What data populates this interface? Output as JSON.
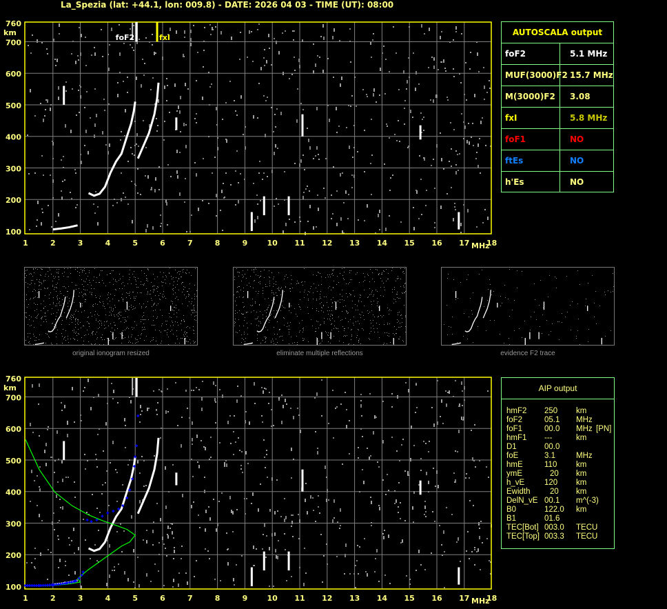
{
  "header": {
    "title": "La_Spezia (lat: +44.1, lon: 009.8) - DATE: 2026 04 03 - TIME (UT): 08:00"
  },
  "autoscala": {
    "title": "AUTOSCALA output",
    "rows": [
      {
        "label": "foF2",
        "value": "5.1 MHz",
        "label_color": "#ffffff",
        "value_color": "#ffffff"
      },
      {
        "label": "MUF(3000)F2",
        "value": "15.7 MHz",
        "label_color": "#ffff80",
        "value_color": "#ffff80"
      },
      {
        "label": "M(3000)F2",
        "value": "3.08",
        "label_color": "#ffff80",
        "value_color": "#ffff80"
      },
      {
        "label": "fxI",
        "value": "5.8 MHz",
        "label_color": "#ffff00",
        "value_color": "#c8c800"
      },
      {
        "label": "foF1",
        "value": "NO",
        "label_color": "#ff0000",
        "value_color": "#ff0000"
      },
      {
        "label": "ftEs",
        "value": "NO",
        "label_color": "#1080ff",
        "value_color": "#1080ff"
      },
      {
        "label": "h'Es",
        "value": "NO",
        "label_color": "#ffff80",
        "value_color": "#ffff80"
      }
    ]
  },
  "aip": {
    "title": "AIP output",
    "rows": [
      {
        "name": "hmF2",
        "value": "250",
        "unit": "km",
        "extra": ""
      },
      {
        "name": "foF2",
        "value": "05.1",
        "unit": "MHz",
        "extra": ""
      },
      {
        "name": "foF1",
        "value": "00.0",
        "unit": "MHz",
        "extra": "[PN]"
      },
      {
        "name": "hmF1",
        "value": "---",
        "unit": "km",
        "extra": ""
      },
      {
        "name": "D1",
        "value": "00.0",
        "unit": "",
        "extra": ""
      },
      {
        "name": "foE",
        "value": "3.1",
        "unit": "MHz",
        "extra": ""
      },
      {
        "name": "hmE",
        "value": "110",
        "unit": "km",
        "extra": ""
      },
      {
        "name": "ymE",
        "value": "20",
        "unit": "km",
        "extra": ""
      },
      {
        "name": "h_vE",
        "value": "120",
        "unit": "km",
        "extra": ""
      },
      {
        "name": "Ewidth",
        "value": "20",
        "unit": "km",
        "extra": ""
      },
      {
        "name": "DelN_vE",
        "value": "00.1",
        "unit": "m^(-3)",
        "extra": ""
      },
      {
        "name": "B0",
        "value": "122.0",
        "unit": "km",
        "extra": ""
      },
      {
        "name": "B1",
        "value": "01.6",
        "unit": "",
        "extra": ""
      },
      {
        "name": "TEC[Bot]",
        "value": "003.0",
        "unit": "TECU",
        "extra": ""
      },
      {
        "name": "TEC[Top]",
        "value": "003.3",
        "unit": "TECU",
        "extra": ""
      }
    ]
  },
  "thumbnails": [
    {
      "label": "original ionogram resized"
    },
    {
      "label": "eliminate multiple reflections"
    },
    {
      "label": "evidence F2 trace"
    }
  ],
  "colors": {
    "axis": "#ffff00",
    "grid": "#808080",
    "trace": "#ffffff",
    "profile": "#00ff00",
    "aip_points": "#0000ff",
    "table_border": "#80ff80"
  },
  "chart_data": [
    {
      "type": "scatter",
      "xlabel": "MHz",
      "ylabel": "km",
      "xlim": [
        1,
        18
      ],
      "ylim": [
        100,
        760
      ],
      "xticks": [
        "1",
        "2",
        "3",
        "4",
        "5",
        "6",
        "7",
        "8",
        "9",
        "10",
        "11",
        "12",
        "13",
        "14",
        "15",
        "16",
        "17",
        "18"
      ],
      "yticks": [
        "100",
        "200",
        "300",
        "400",
        "500",
        "600",
        "700",
        "760"
      ],
      "grid": true,
      "markers": [
        {
          "label": "foF2",
          "x": 5.05,
          "color": "#ffffff"
        },
        {
          "label": "fxI",
          "x": 5.8,
          "color": "#ffff00"
        }
      ],
      "traces": [
        {
          "name": "",
          "points": [
            [
              2.0,
              105
            ],
            [
              2.3,
              108
            ],
            [
              2.6,
              112
            ],
            [
              2.9,
              118
            ]
          ]
        },
        {
          "name": "",
          "points": [
            [
              3.3,
              220
            ],
            [
              3.5,
              212
            ],
            [
              3.7,
              218
            ],
            [
              3.9,
              240
            ],
            [
              4.1,
              285
            ],
            [
              4.3,
              320
            ],
            [
              4.5,
              345
            ],
            [
              4.7,
              400
            ],
            [
              4.85,
              440
            ],
            [
              4.95,
              480
            ],
            [
              5.0,
              510
            ]
          ]
        },
        {
          "name": "",
          "points": [
            [
              5.1,
              330
            ],
            [
              5.3,
              370
            ],
            [
              5.5,
              410
            ],
            [
              5.7,
              470
            ],
            [
              5.8,
              520
            ],
            [
              5.85,
              570
            ]
          ]
        },
        {
          "name": "",
          "points": [
            [
              2.4,
              500
            ],
            [
              2.4,
              560
            ]
          ]
        },
        {
          "name": "",
          "points": [
            [
              6.5,
              420
            ],
            [
              6.5,
              460
            ]
          ]
        },
        {
          "name": "",
          "points": [
            [
              11.1,
              400
            ],
            [
              11.1,
              470
            ]
          ]
        },
        {
          "name": "",
          "points": [
            [
              15.4,
              390
            ],
            [
              15.4,
              435
            ]
          ]
        },
        {
          "name": "",
          "points": [
            [
              16.8,
              105
            ],
            [
              16.8,
              160
            ]
          ]
        },
        {
          "name": "",
          "points": [
            [
              9.25,
              100
            ],
            [
              9.25,
              160
            ]
          ]
        },
        {
          "name": "",
          "points": [
            [
              9.7,
              150
            ],
            [
              9.7,
              210
            ]
          ]
        },
        {
          "name": "",
          "points": [
            [
              10.6,
              150
            ],
            [
              10.6,
              210
            ]
          ]
        }
      ]
    },
    {
      "type": "scatter",
      "xlabel": "MHz",
      "ylabel": "km",
      "xlim": [
        1,
        18
      ],
      "ylim": [
        100,
        760
      ],
      "xticks": [
        "1",
        "2",
        "3",
        "4",
        "5",
        "6",
        "7",
        "8",
        "9",
        "10",
        "11",
        "12",
        "13",
        "14",
        "15",
        "16",
        "17",
        "18"
      ],
      "yticks": [
        "100",
        "200",
        "300",
        "400",
        "500",
        "600",
        "700",
        "760"
      ],
      "grid": true,
      "profile": [
        [
          1.0,
          565
        ],
        [
          1.5,
          470
        ],
        [
          2.07,
          398
        ],
        [
          2.7,
          355
        ],
        [
          3.3,
          326
        ],
        [
          3.8,
          308
        ],
        [
          4.3,
          293
        ],
        [
          4.7,
          280
        ],
        [
          5.0,
          262
        ],
        [
          4.8,
          240
        ],
        [
          4.5,
          227
        ],
        [
          3.9,
          190
        ],
        [
          3.3,
          153
        ],
        [
          2.9,
          124
        ],
        [
          3.0,
          113
        ],
        [
          2.5,
          106
        ],
        [
          1.8,
          102
        ],
        [
          1.0,
          102
        ]
      ],
      "aip_points": [
        [
          1.0,
          102
        ],
        [
          1.5,
          102
        ],
        [
          2.0,
          104
        ],
        [
          2.5,
          110
        ],
        [
          2.8,
          116
        ],
        [
          2.95,
          125
        ],
        [
          3.05,
          135
        ],
        [
          3.1,
          145
        ],
        [
          3.25,
          310
        ],
        [
          3.4,
          305
        ],
        [
          3.6,
          310
        ],
        [
          3.8,
          322
        ],
        [
          4.0,
          332
        ],
        [
          4.2,
          338
        ],
        [
          4.4,
          345
        ],
        [
          4.55,
          355
        ],
        [
          4.7,
          380
        ],
        [
          4.8,
          405
        ],
        [
          4.9,
          440
        ],
        [
          4.97,
          480
        ],
        [
          5.0,
          510
        ],
        [
          5.05,
          545
        ],
        [
          5.1,
          640
        ]
      ]
    }
  ]
}
